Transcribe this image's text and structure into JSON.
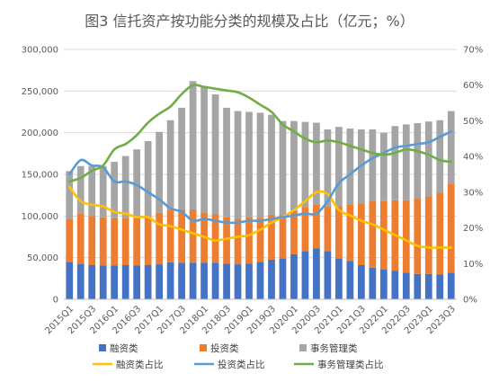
{
  "chart_data": {
    "type": "bar",
    "title": "图3  信托资产按功能分类的规模及占比（亿元；%）",
    "stacked": true,
    "grid": true,
    "legend_position": "bottom",
    "ylim_left": [
      0,
      300000
    ],
    "ylim_right": [
      0,
      70
    ],
    "left_ticks": [
      "0",
      "50,000",
      "100,000",
      "150,000",
      "200,000",
      "250,000",
      "300,000"
    ],
    "right_ticks": [
      "0%",
      "10%",
      "20%",
      "30%",
      "40%",
      "50%",
      "60%",
      "70%"
    ],
    "x_tick_labels": [
      "2015Q1",
      "2015Q3",
      "2016Q1",
      "2016Q3",
      "2017Q1",
      "2017Q3",
      "2018Q1",
      "2018Q3",
      "2019Q1",
      "2019Q3",
      "2020Q1",
      "2020Q3",
      "2021Q1",
      "2021Q3",
      "2022Q1",
      "2022Q3",
      "2023Q1",
      "2023Q3"
    ],
    "categories": [
      "2015Q1",
      "2015Q2",
      "2015Q3",
      "2015Q4",
      "2016Q1",
      "2016Q2",
      "2016Q3",
      "2016Q4",
      "2017Q1",
      "2017Q2",
      "2017Q3",
      "2017Q4",
      "2018Q1",
      "2018Q2",
      "2018Q3",
      "2018Q4",
      "2019Q1",
      "2019Q2",
      "2019Q3",
      "2019Q4",
      "2020Q1",
      "2020Q2",
      "2020Q3",
      "2020Q4",
      "2021Q1",
      "2021Q2",
      "2021Q3",
      "2021Q4",
      "2022Q1",
      "2022Q2",
      "2022Q3",
      "2022Q4",
      "2023Q1",
      "2023Q2",
      "2023Q3"
    ],
    "bar_series": [
      {
        "name": "融资类",
        "color": "#4472C4",
        "values": [
          45000,
          42500,
          41000,
          40500,
          40500,
          41000,
          40500,
          41000,
          42000,
          44500,
          44000,
          44000,
          44000,
          44000,
          43000,
          42000,
          43000,
          45000,
          47500,
          49000,
          54000,
          58000,
          61000,
          58000,
          49000,
          46000,
          41000,
          38000,
          36000,
          34000,
          32000,
          30500,
          30500,
          30000,
          32000
        ]
      },
      {
        "name": "投资类",
        "color": "#ED7D31",
        "values": [
          51000,
          60000,
          59000,
          58000,
          57000,
          57000,
          57000,
          59000,
          62000,
          63000,
          64000,
          64000,
          60000,
          58000,
          56000,
          55000,
          56000,
          53000,
          54000,
          52000,
          52000,
          53000,
          53000,
          54000,
          63000,
          68000,
          74000,
          80000,
          82000,
          85000,
          87000,
          91000,
          93000,
          98000,
          107000
        ]
      },
      {
        "name": "事务管理类",
        "color": "#A5A5A5",
        "values": [
          58000,
          57500,
          60000,
          61500,
          67500,
          74000,
          82500,
          90000,
          97000,
          107500,
          122000,
          154000,
          152000,
          144000,
          131000,
          129000,
          126000,
          126000,
          120000,
          113000,
          108000,
          102000,
          98000,
          92000,
          95000,
          91000,
          89000,
          86000,
          82000,
          89000,
          91000,
          90000,
          90000,
          87000,
          87000
        ]
      }
    ],
    "line_series": [
      {
        "name": "融资类占比",
        "color": "#FFC000",
        "values": [
          31.5,
          27.5,
          26.5,
          26,
          24.5,
          24,
          23,
          23,
          21,
          20.5,
          19.5,
          18.5,
          17.5,
          16.5,
          17,
          17.5,
          18,
          19.5,
          21.5,
          23,
          25,
          27.5,
          30,
          29.5,
          25,
          23.5,
          22,
          21,
          19.5,
          18,
          16.5,
          15,
          14.5,
          14.5,
          14.5
        ]
      },
      {
        "name": "投资类占比",
        "color": "#5B9BD5",
        "values": [
          35,
          39,
          37.5,
          37,
          33,
          33,
          32,
          30,
          28,
          25.5,
          24.5,
          22,
          22.5,
          22,
          21.5,
          21.5,
          22,
          22,
          22.5,
          23,
          23.5,
          24,
          24,
          27.5,
          32.5,
          35,
          37.5,
          39.5,
          41,
          42.5,
          43,
          43.5,
          44,
          45.5,
          47
        ]
      },
      {
        "name": "事务管理类占比",
        "color": "#70AD47",
        "values": [
          33,
          34,
          36,
          37.5,
          42,
          43.5,
          46,
          49.5,
          52,
          54,
          57.5,
          60,
          59.5,
          59,
          58.5,
          58,
          56.5,
          54.5,
          52.5,
          49,
          47,
          45,
          44,
          44.5,
          44,
          43,
          42,
          41,
          40.5,
          41,
          42,
          41.5,
          40.5,
          39,
          38.5
        ]
      }
    ]
  }
}
